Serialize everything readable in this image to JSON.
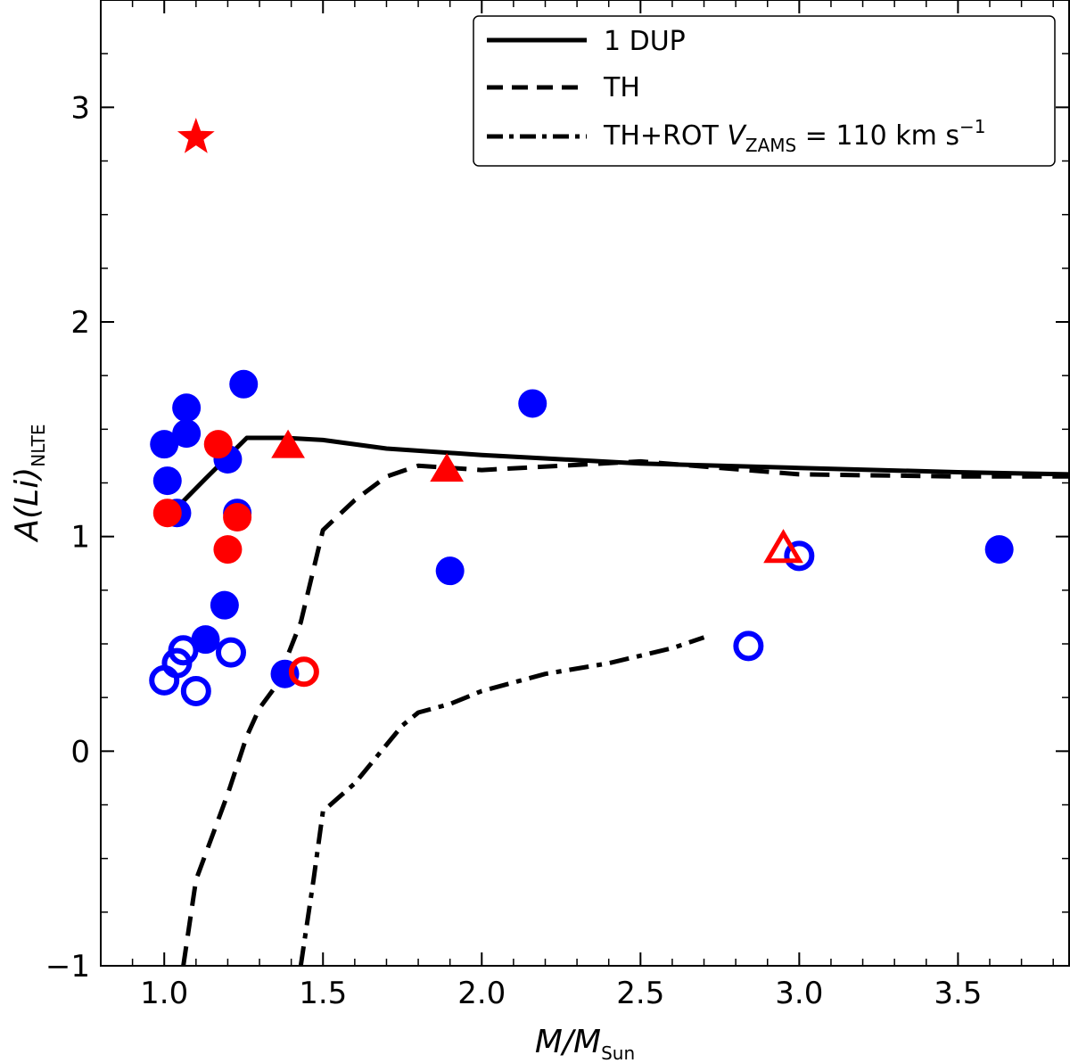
{
  "chart_data": {
    "type": "scatter",
    "xlabel": {
      "main": "M/M",
      "sub": "Sun"
    },
    "ylabel": {
      "main": "A(Li)",
      "sub": "NLTE"
    },
    "xlim": [
      0.8,
      3.85
    ],
    "ylim": [
      -1.0,
      3.5
    ],
    "x_ticks": [
      1.0,
      1.5,
      2.0,
      2.5,
      3.0,
      3.5
    ],
    "x_tick_labels": [
      "1.0",
      "1.5",
      "2.0",
      "2.5",
      "3.0",
      "3.5"
    ],
    "y_ticks": [
      -1,
      0,
      1,
      2,
      3
    ],
    "y_tick_labels": [
      "−1",
      "0",
      "1",
      "2",
      "3"
    ],
    "legend": {
      "position": "top-right",
      "entries": [
        {
          "style": "solid",
          "label": "1 DUP"
        },
        {
          "style": "dashed",
          "label": "TH"
        },
        {
          "style": "dashdot",
          "label_prefix": "TH+ROT ",
          "label_var": "V",
          "label_var_sub": "ZAMS",
          "label_eq": " = 110 km s",
          "label_sup": "−1"
        }
      ]
    },
    "lines": [
      {
        "name": "1 DUP",
        "style": "solid",
        "x": [
          1.05,
          1.13,
          1.26,
          1.38,
          1.5,
          1.7,
          2.0,
          2.5,
          3.0,
          3.5,
          3.85
        ],
        "y": [
          1.15,
          1.27,
          1.46,
          1.46,
          1.45,
          1.41,
          1.38,
          1.34,
          1.32,
          1.3,
          1.29
        ]
      },
      {
        "name": "TH",
        "style": "dashed",
        "x": [
          1.06,
          1.1,
          1.2,
          1.26,
          1.3,
          1.35,
          1.43,
          1.5,
          1.6,
          1.7,
          1.8,
          2.0,
          2.5,
          3.0,
          3.5,
          3.85
        ],
        "y": [
          -1.0,
          -0.6,
          -0.2,
          0.07,
          0.2,
          0.3,
          0.6,
          1.03,
          1.17,
          1.28,
          1.33,
          1.31,
          1.35,
          1.29,
          1.28,
          1.28
        ]
      },
      {
        "name": "TH+ROT",
        "style": "dashdot",
        "x": [
          1.43,
          1.47,
          1.5,
          1.6,
          1.75,
          1.8,
          1.9,
          2.0,
          2.2,
          2.4,
          2.6,
          2.7
        ],
        "y": [
          -1.0,
          -0.6,
          -0.28,
          -0.15,
          0.12,
          0.18,
          0.22,
          0.28,
          0.36,
          0.41,
          0.48,
          0.53
        ]
      }
    ],
    "series": [
      {
        "name": "blue filled circles",
        "marker": "circle",
        "filled": true,
        "color": "#0000ff",
        "points": [
          [
            1.0,
            1.43
          ],
          [
            1.01,
            1.26
          ],
          [
            1.04,
            1.11
          ],
          [
            1.07,
            1.6
          ],
          [
            1.07,
            1.48
          ],
          [
            1.2,
            1.36
          ],
          [
            1.23,
            1.11
          ],
          [
            1.25,
            1.71
          ],
          [
            1.19,
            0.68
          ],
          [
            1.13,
            0.52
          ],
          [
            1.38,
            0.36
          ],
          [
            1.9,
            0.84
          ],
          [
            2.16,
            1.62
          ],
          [
            3.63,
            0.94
          ]
        ]
      },
      {
        "name": "blue open circles",
        "marker": "circle",
        "filled": false,
        "color": "#0000ff",
        "points": [
          [
            1.0,
            0.33
          ],
          [
            1.04,
            0.41
          ],
          [
            1.06,
            0.47
          ],
          [
            1.1,
            0.28
          ],
          [
            1.21,
            0.46
          ],
          [
            2.84,
            0.49
          ],
          [
            3.0,
            0.91
          ]
        ]
      },
      {
        "name": "red filled circles",
        "marker": "circle",
        "filled": true,
        "color": "#ff0000",
        "points": [
          [
            1.01,
            1.11
          ],
          [
            1.17,
            1.43
          ],
          [
            1.23,
            1.09
          ],
          [
            1.2,
            0.94
          ]
        ]
      },
      {
        "name": "red open circles",
        "marker": "circle",
        "filled": false,
        "color": "#ff0000",
        "points": [
          [
            1.44,
            0.37
          ]
        ]
      },
      {
        "name": "red filled triangles",
        "marker": "triangle",
        "filled": true,
        "color": "#ff0000",
        "points": [
          [
            1.39,
            1.42
          ],
          [
            1.89,
            1.31
          ]
        ]
      },
      {
        "name": "red open triangles",
        "marker": "triangle",
        "filled": false,
        "color": "#ff0000",
        "points": [
          [
            2.95,
            0.94
          ]
        ]
      },
      {
        "name": "red star",
        "marker": "star",
        "filled": true,
        "color": "#ff0000",
        "points": [
          [
            1.1,
            2.86
          ]
        ]
      }
    ]
  }
}
